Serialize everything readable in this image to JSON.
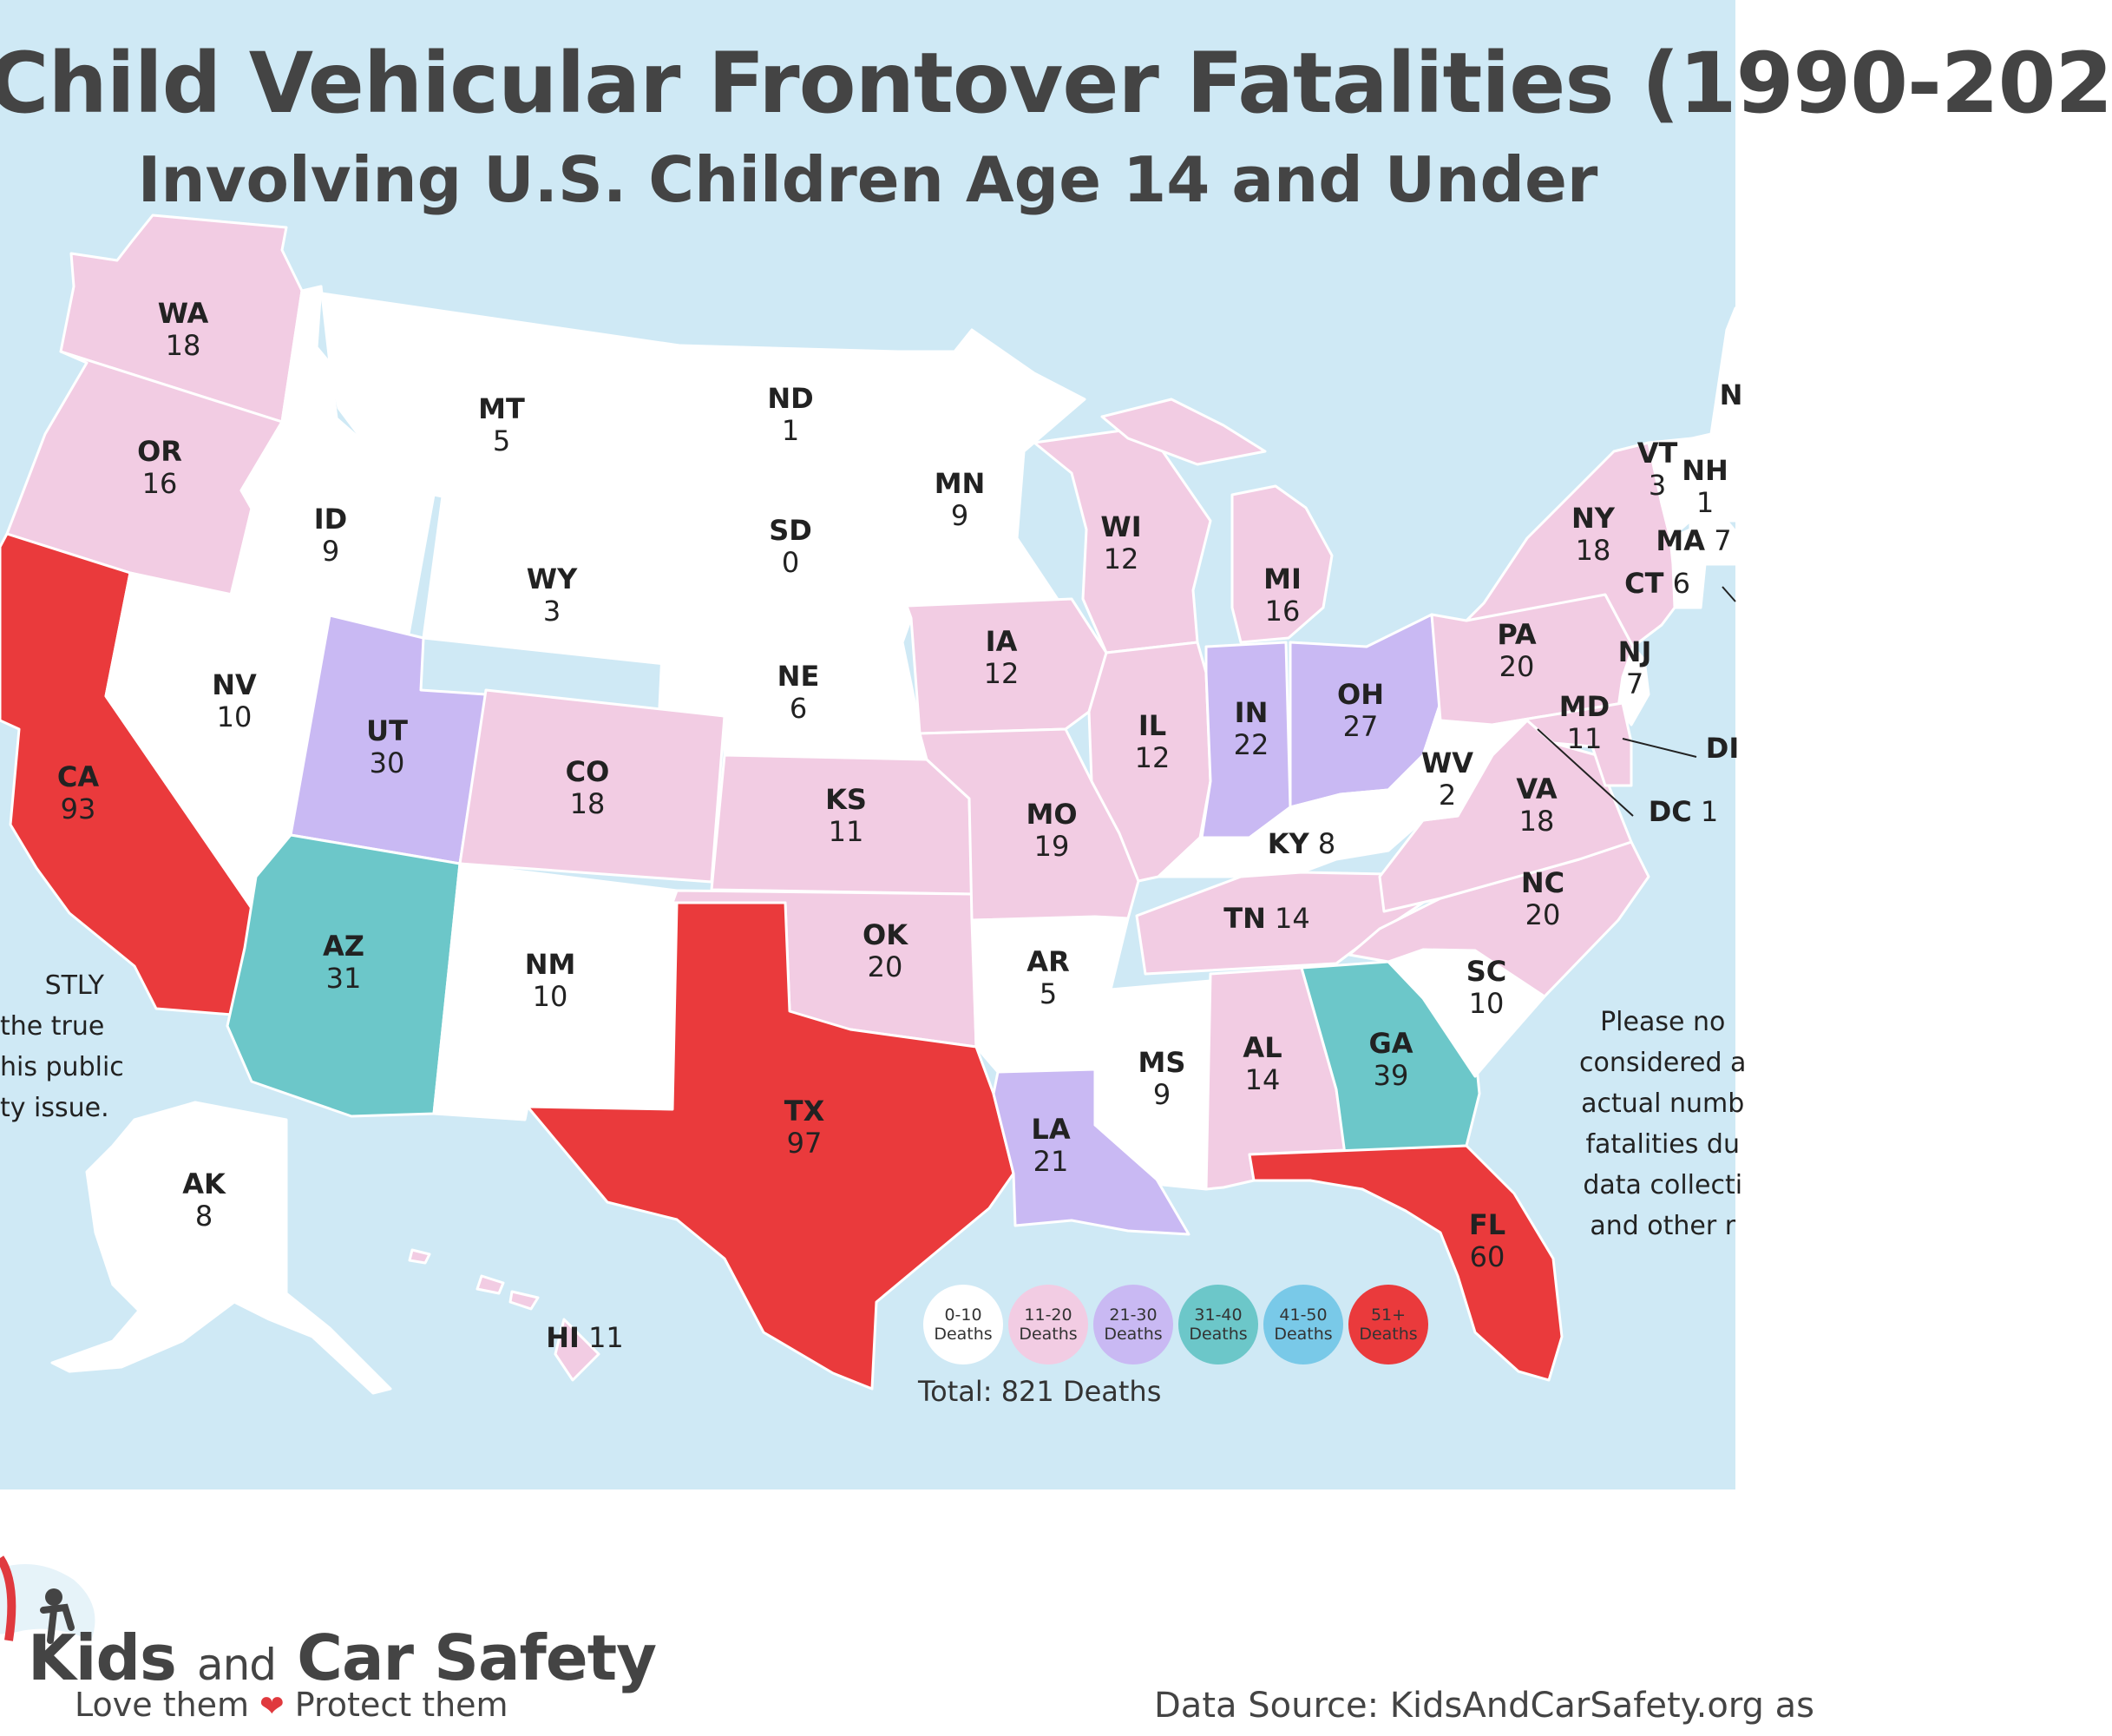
{
  "header": {
    "title": "Child Vehicular Frontover Fatalities (1990-202",
    "subtitle": "Involving U.S. Children Age 14 and Under"
  },
  "colors": {
    "sea": "#cfe9f5",
    "band_0_10": "#ffffff",
    "band_11_20": "#f2cce3",
    "band_21_30": "#c9b9f3",
    "band_31_40": "#6cc7c9",
    "band_41_50": "#79c9e8",
    "band_51_plus": "#ea3a3c"
  },
  "states": [
    {
      "abbr": "WA",
      "value": "18"
    },
    {
      "abbr": "OR",
      "value": "16"
    },
    {
      "abbr": "CA",
      "value": "93"
    },
    {
      "abbr": "ID",
      "value": "9"
    },
    {
      "abbr": "NV",
      "value": "10"
    },
    {
      "abbr": "MT",
      "value": "5"
    },
    {
      "abbr": "WY",
      "value": "3"
    },
    {
      "abbr": "UT",
      "value": "30"
    },
    {
      "abbr": "AZ",
      "value": "31"
    },
    {
      "abbr": "CO",
      "value": "18"
    },
    {
      "abbr": "NM",
      "value": "10"
    },
    {
      "abbr": "ND",
      "value": "1"
    },
    {
      "abbr": "SD",
      "value": "0"
    },
    {
      "abbr": "NE",
      "value": "6"
    },
    {
      "abbr": "KS",
      "value": "11"
    },
    {
      "abbr": "OK",
      "value": "20"
    },
    {
      "abbr": "TX",
      "value": "97"
    },
    {
      "abbr": "MN",
      "value": "9"
    },
    {
      "abbr": "IA",
      "value": "12"
    },
    {
      "abbr": "MO",
      "value": "19"
    },
    {
      "abbr": "AR",
      "value": "5"
    },
    {
      "abbr": "LA",
      "value": "21"
    },
    {
      "abbr": "WI",
      "value": "12"
    },
    {
      "abbr": "IL",
      "value": "12"
    },
    {
      "abbr": "MI",
      "value": "16"
    },
    {
      "abbr": "IN",
      "value": "22"
    },
    {
      "abbr": "OH",
      "value": "27"
    },
    {
      "abbr": "KY",
      "value": "8"
    },
    {
      "abbr": "TN",
      "value": "14"
    },
    {
      "abbr": "MS",
      "value": "9"
    },
    {
      "abbr": "AL",
      "value": "14"
    },
    {
      "abbr": "GA",
      "value": "39"
    },
    {
      "abbr": "FL",
      "value": "60"
    },
    {
      "abbr": "SC",
      "value": "10"
    },
    {
      "abbr": "NC",
      "value": "20"
    },
    {
      "abbr": "VA",
      "value": "18"
    },
    {
      "abbr": "WV",
      "value": "2"
    },
    {
      "abbr": "PA",
      "value": "20"
    },
    {
      "abbr": "NY",
      "value": "18"
    },
    {
      "abbr": "NJ",
      "value": "7"
    },
    {
      "abbr": "MD",
      "value": "11"
    },
    {
      "abbr": "DC",
      "value": "1"
    },
    {
      "abbr": "VT",
      "value": "3"
    },
    {
      "abbr": "NH",
      "value": "1"
    },
    {
      "abbr": "MA",
      "value": "7"
    },
    {
      "abbr": "CT",
      "value": "6"
    },
    {
      "abbr": "AK",
      "value": "8"
    },
    {
      "abbr": "HI",
      "value": "11"
    },
    {
      "abbr": "DE",
      "value": ""
    },
    {
      "abbr": "ME",
      "value": ""
    }
  ],
  "state_labels": {
    "DE": "DI",
    "ME": "N"
  },
  "notes": {
    "left": [
      "STLY",
      "the true",
      "his public",
      "ty issue."
    ],
    "right": [
      "Please no",
      "considered a",
      "actual numb",
      "fatalities du",
      "data collecti",
      "and other r"
    ]
  },
  "legend": [
    {
      "line1": "0-10",
      "line2": "Deaths",
      "color": "#ffffff"
    },
    {
      "line1": "11-20",
      "line2": "Deaths",
      "color": "#f2cce3"
    },
    {
      "line1": "21-30",
      "line2": "Deaths",
      "color": "#c9b9f3"
    },
    {
      "line1": "31-40",
      "line2": "Deaths",
      "color": "#6cc7c9"
    },
    {
      "line1": "41-50",
      "line2": "Deaths",
      "color": "#79c9e8"
    },
    {
      "line1": "51+",
      "line2": "Deaths",
      "color": "#ea3a3c"
    }
  ],
  "total": "Total: 821 Deaths",
  "brand": {
    "name_part1": "Kids",
    "name_part2": "and",
    "name_part3": "Car Safety",
    "tag_part1": "Love them",
    "tag_part2": "Protect them"
  },
  "source": "Data Source: KidsAndCarSafety.org as"
}
